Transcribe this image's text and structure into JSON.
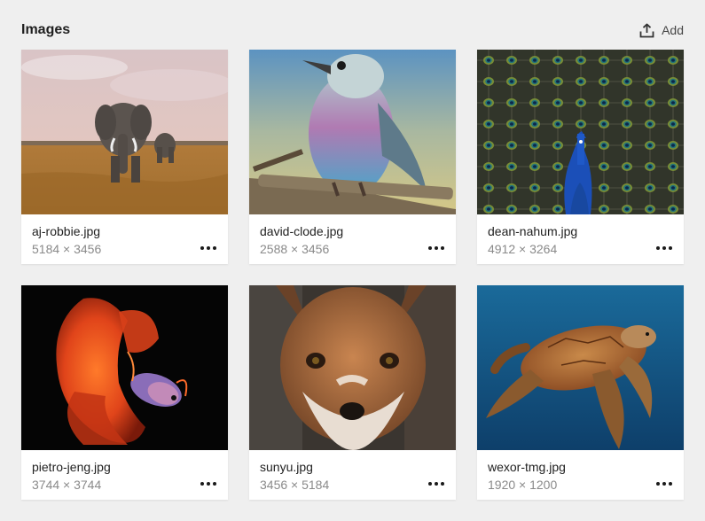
{
  "header": {
    "title": "Images",
    "add_label": "Add",
    "add_icon": "upload-icon"
  },
  "images": [
    {
      "filename": "aj-robbie.jpg",
      "dimensions": "5184 × 3456",
      "subject": "elephant-photo"
    },
    {
      "filename": "david-clode.jpg",
      "dimensions": "2588 × 3456",
      "subject": "bird-photo"
    },
    {
      "filename": "dean-nahum.jpg",
      "dimensions": "4912 × 3264",
      "subject": "peacock-photo"
    },
    {
      "filename": "pietro-jeng.jpg",
      "dimensions": "3744 × 3744",
      "subject": "betta-fish-photo"
    },
    {
      "filename": "sunyu.jpg",
      "dimensions": "3456 × 5184",
      "subject": "fox-photo"
    },
    {
      "filename": "wexor-tmg.jpg",
      "dimensions": "1920 × 1200",
      "subject": "sea-turtle-photo"
    }
  ],
  "more_icon": "more-horizontal-icon"
}
